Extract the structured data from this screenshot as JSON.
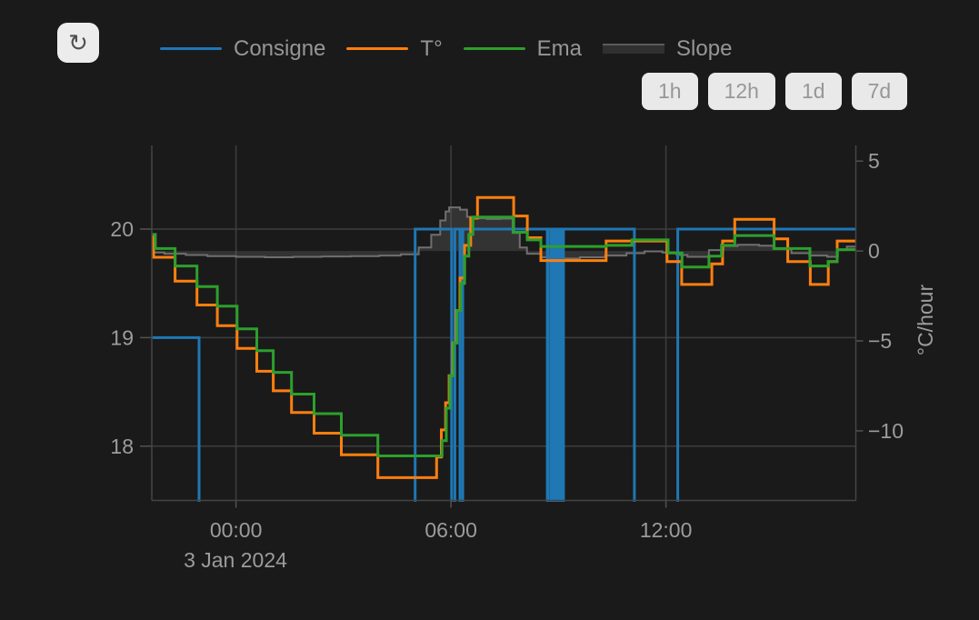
{
  "page": {
    "background": "#1a1a1a"
  },
  "toolbar": {
    "refresh_icon": "↻"
  },
  "legend": {
    "items": [
      {
        "label": "Consigne",
        "type": "line",
        "color": "#1f77b4"
      },
      {
        "label": "T°",
        "type": "line",
        "color": "#ff7f0e"
      },
      {
        "label": "Ema",
        "type": "line",
        "color": "#2ca02c"
      },
      {
        "label": "Slope",
        "type": "area",
        "color": "#303030",
        "line_color": "#5a5a5a"
      }
    ]
  },
  "range_buttons": [
    {
      "label": "1h"
    },
    {
      "label": "12h"
    },
    {
      "label": "1d"
    },
    {
      "label": "7d"
    }
  ],
  "chart_data": {
    "type": "line",
    "title": "",
    "date_label": "3 Jan 2024",
    "x_unit": "hours relative to 2024-01-03 00:00",
    "x_range": [
      -2.35,
      17.3
    ],
    "x_ticks": [
      {
        "value": 0,
        "label": "00:00"
      },
      {
        "value": 6,
        "label": "06:00"
      },
      {
        "value": 12,
        "label": "12:00"
      }
    ],
    "y_left": {
      "range": [
        17.5,
        20.77
      ],
      "ticks": [
        {
          "value": 20,
          "label": "20"
        },
        {
          "value": 19,
          "label": "19"
        },
        {
          "value": 18,
          "label": "18"
        }
      ]
    },
    "y_right": {
      "title": "°C/hour",
      "range": [
        -13.87,
        5.87
      ],
      "ticks": [
        {
          "value": 5,
          "label": "5"
        },
        {
          "value": 0,
          "label": "0"
        },
        {
          "value": -5,
          "label": "−5"
        },
        {
          "value": -10,
          "label": "−10"
        }
      ]
    },
    "grid": true,
    "legend_position": "top",
    "series": [
      {
        "id": "slope",
        "name": "Slope",
        "axis": "right",
        "step": "hv",
        "width": 2,
        "color": "#6f6f6f",
        "fill": "rgba(110,110,110,0.30)",
        "fill_to": 0,
        "points": [
          [
            -2.35,
            -0.08
          ],
          [
            -2.0,
            -0.15
          ],
          [
            -1.4,
            -0.22
          ],
          [
            -0.8,
            -0.28
          ],
          [
            0.0,
            -0.32
          ],
          [
            0.8,
            -0.35
          ],
          [
            1.6,
            -0.32
          ],
          [
            2.4,
            -0.3
          ],
          [
            3.2,
            -0.28
          ],
          [
            4.0,
            -0.25
          ],
          [
            4.6,
            -0.18
          ],
          [
            5.1,
            0.2
          ],
          [
            5.45,
            0.9
          ],
          [
            5.7,
            1.7
          ],
          [
            5.85,
            2.2
          ],
          [
            5.95,
            2.43
          ],
          [
            6.25,
            2.3
          ],
          [
            6.45,
            1.9
          ],
          [
            6.7,
            1.82
          ],
          [
            7.0,
            1.78
          ],
          [
            7.4,
            1.8
          ],
          [
            7.72,
            1.0
          ],
          [
            7.92,
            0.2
          ],
          [
            8.12,
            -0.15
          ],
          [
            8.5,
            -0.35
          ],
          [
            8.9,
            -0.42
          ],
          [
            9.6,
            -0.35
          ],
          [
            10.3,
            -0.25
          ],
          [
            10.9,
            -0.12
          ],
          [
            11.4,
            -0.02
          ],
          [
            11.9,
            -0.08
          ],
          [
            12.3,
            -0.22
          ],
          [
            12.6,
            -0.32
          ],
          [
            13.2,
            0.05
          ],
          [
            13.6,
            0.28
          ],
          [
            14.0,
            0.35
          ],
          [
            14.6,
            0.3
          ],
          [
            15.0,
            0.12
          ],
          [
            15.5,
            -0.12
          ],
          [
            16.0,
            -0.25
          ],
          [
            16.5,
            -0.32
          ],
          [
            16.8,
            0.05
          ],
          [
            17.05,
            0.25
          ]
        ]
      },
      {
        "id": "consigne",
        "name": "Consigne",
        "axis": "left",
        "step": "hv",
        "width": 3,
        "color": "#1f77b4",
        "points": [
          [
            -2.35,
            19
          ],
          [
            -1.03,
            17
          ],
          [
            5.0,
            20
          ],
          [
            6.02,
            17
          ],
          [
            6.11,
            20
          ],
          [
            6.25,
            17
          ],
          [
            6.33,
            20
          ],
          [
            8.69,
            17
          ],
          [
            8.72,
            20
          ],
          [
            8.8,
            17
          ],
          [
            8.83,
            20
          ],
          [
            8.9,
            17
          ],
          [
            8.93,
            20
          ],
          [
            9.0,
            17
          ],
          [
            9.03,
            20
          ],
          [
            9.1,
            17
          ],
          [
            9.14,
            20
          ],
          [
            11.12,
            17
          ],
          [
            12.33,
            20
          ]
        ]
      },
      {
        "id": "temperature",
        "name": "T°",
        "axis": "left",
        "step": "hv",
        "width": 3,
        "color": "#ff7f0e",
        "points": [
          [
            -2.35,
            19.93
          ],
          [
            -2.3,
            19.74
          ],
          [
            -1.7,
            19.52
          ],
          [
            -1.09,
            19.3
          ],
          [
            -0.52,
            19.11
          ],
          [
            0.03,
            18.9
          ],
          [
            0.58,
            18.69
          ],
          [
            1.04,
            18.51
          ],
          [
            1.55,
            18.31
          ],
          [
            2.18,
            18.12
          ],
          [
            2.94,
            17.92
          ],
          [
            3.96,
            17.71
          ],
          [
            5.6,
            17.9
          ],
          [
            5.73,
            18.15
          ],
          [
            5.85,
            18.4
          ],
          [
            5.95,
            18.65
          ],
          [
            6.05,
            18.95
          ],
          [
            6.15,
            19.25
          ],
          [
            6.25,
            19.55
          ],
          [
            6.38,
            19.85
          ],
          [
            6.55,
            20.1
          ],
          [
            6.74,
            20.29
          ],
          [
            7.75,
            20.12
          ],
          [
            8.13,
            19.92
          ],
          [
            8.51,
            19.71
          ],
          [
            10.33,
            19.89
          ],
          [
            12.03,
            19.7
          ],
          [
            12.44,
            19.49
          ],
          [
            13.28,
            19.68
          ],
          [
            13.58,
            19.89
          ],
          [
            13.92,
            20.09
          ],
          [
            15.02,
            19.91
          ],
          [
            15.4,
            19.7
          ],
          [
            16.03,
            19.49
          ],
          [
            16.53,
            19.7
          ],
          [
            16.78,
            19.89
          ]
        ]
      },
      {
        "id": "ema",
        "name": "Ema",
        "axis": "left",
        "step": "hv",
        "width": 3,
        "color": "#2ca02c",
        "points": [
          [
            -2.35,
            19.95
          ],
          [
            -2.25,
            19.82
          ],
          [
            -1.7,
            19.66
          ],
          [
            -1.09,
            19.47
          ],
          [
            -0.52,
            19.29
          ],
          [
            0.03,
            19.08
          ],
          [
            0.58,
            18.88
          ],
          [
            1.04,
            18.68
          ],
          [
            1.55,
            18.48
          ],
          [
            2.18,
            18.3
          ],
          [
            2.94,
            18.1
          ],
          [
            3.96,
            17.91
          ],
          [
            5.75,
            18.05
          ],
          [
            5.87,
            18.35
          ],
          [
            5.97,
            18.65
          ],
          [
            6.07,
            18.95
          ],
          [
            6.17,
            19.25
          ],
          [
            6.27,
            19.5
          ],
          [
            6.38,
            19.75
          ],
          [
            6.5,
            19.95
          ],
          [
            6.61,
            20.11
          ],
          [
            7.75,
            19.97
          ],
          [
            8.13,
            19.9
          ],
          [
            8.51,
            19.84
          ],
          [
            10.33,
            19.85
          ],
          [
            11.05,
            19.9
          ],
          [
            12.06,
            19.78
          ],
          [
            12.45,
            19.65
          ],
          [
            13.2,
            19.75
          ],
          [
            13.55,
            19.85
          ],
          [
            13.92,
            19.94
          ],
          [
            15.02,
            19.82
          ],
          [
            16.02,
            19.66
          ],
          [
            16.53,
            19.7
          ],
          [
            16.78,
            19.81
          ]
        ]
      }
    ]
  }
}
